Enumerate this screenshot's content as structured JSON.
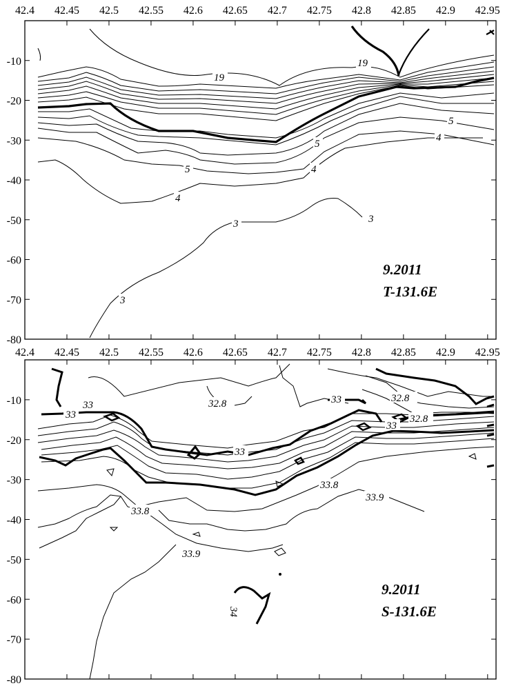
{
  "chart_data": [
    {
      "type": "contour",
      "title": "9.2011",
      "subtitle": "T-131.6E",
      "x_ticks": [
        "42.4",
        "42.45",
        "42.5",
        "42.55",
        "42.6",
        "42.65",
        "42.7",
        "42.75",
        "42.8",
        "42.85",
        "42.9",
        "42.95"
      ],
      "y_ticks": [
        "-10",
        "-20",
        "-30",
        "-40",
        "-50",
        "-60",
        "-70",
        "-80"
      ],
      "xlim": [
        42.4,
        42.96
      ],
      "ylim": [
        -80,
        0
      ],
      "contour_labels": [
        {
          "text": "19",
          "x": 42.6,
          "y": -13
        },
        {
          "text": "19",
          "x": 42.81,
          "y": -11
        },
        {
          "text": "5",
          "x": 42.89,
          "y": -25
        },
        {
          "text": "4",
          "x": 42.895,
          "y": -29
        },
        {
          "text": "5",
          "x": 42.74,
          "y": -33
        },
        {
          "text": "4",
          "x": 42.735,
          "y": -38
        },
        {
          "text": "5",
          "x": 42.59,
          "y": -40
        },
        {
          "text": "4",
          "x": 42.58,
          "y": -48
        },
        {
          "text": "3",
          "x": 42.645,
          "y": -53
        },
        {
          "text": "3",
          "x": 42.815,
          "y": -52
        },
        {
          "text": "3",
          "x": 42.515,
          "y": -71
        }
      ],
      "bold_isoline": {
        "x": [
          42.4,
          42.45,
          42.5,
          42.55,
          42.6,
          42.65,
          42.7,
          42.75,
          42.8,
          42.85,
          42.9,
          42.96
        ],
        "y": [
          -22.5,
          -22,
          -21,
          -28,
          -28.5,
          -30,
          -31,
          -25,
          -19,
          -18,
          -17.5,
          -15
        ]
      }
    },
    {
      "type": "contour",
      "title": "9.2011",
      "subtitle": "S-131.6E",
      "x_ticks": [
        "42.4",
        "42.45",
        "42.5",
        "42.55",
        "42.6",
        "42.65",
        "42.7",
        "42.75",
        "42.8",
        "42.85",
        "42.9",
        "42.95"
      ],
      "y_ticks": [
        "-10",
        "-20",
        "-30",
        "-40",
        "-50",
        "-60",
        "-70",
        "-80"
      ],
      "xlim": [
        42.4,
        42.96
      ],
      "ylim": [
        -80,
        0
      ],
      "contour_labels": [
        {
          "text": "33",
          "x": 42.43,
          "y": -12
        },
        {
          "text": "33",
          "x": 42.48,
          "y": -9
        },
        {
          "text": "32.8",
          "x": 42.64,
          "y": -10
        },
        {
          "text": "33",
          "x": 42.78,
          "y": -8
        },
        {
          "text": "32.8",
          "x": 42.87,
          "y": -8
        },
        {
          "text": "33",
          "x": 42.84,
          "y": -16
        },
        {
          "text": "32.8",
          "x": 42.865,
          "y": -16
        },
        {
          "text": "33",
          "x": 42.66,
          "y": -22
        },
        {
          "text": "33.8",
          "x": 42.77,
          "y": -33
        },
        {
          "text": "33.9",
          "x": 42.815,
          "y": -36
        },
        {
          "text": "33.8",
          "x": 42.54,
          "y": -38
        },
        {
          "text": "33.9",
          "x": 42.58,
          "y": -50
        },
        {
          "text": "34",
          "x": 42.655,
          "y": -68
        }
      ],
      "bold_isoline": {
        "x": [
          42.4,
          42.45,
          42.5,
          42.55,
          42.6,
          42.65,
          42.7,
          42.75,
          42.8,
          42.85,
          42.9,
          42.96
        ],
        "y": [
          -25,
          -28,
          -22,
          -31,
          -30,
          -34,
          -33,
          -25,
          -19,
          -18,
          -18,
          -16
        ]
      }
    }
  ]
}
